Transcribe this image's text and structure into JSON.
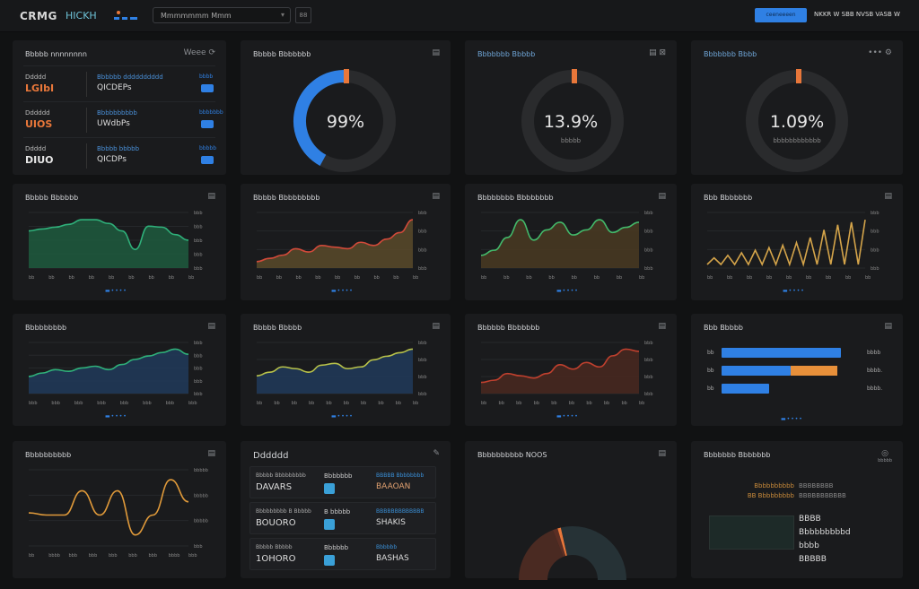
{
  "header": {
    "logo": "CRMG",
    "logo_sub": "HICKH",
    "search_value": "Mmmmmmm Mmm",
    "search_btn": "88",
    "primary_button": "ceeneeeen",
    "user_text": "NKKR W SBB NVSB VASB W"
  },
  "colors": {
    "accent": "#2f80e4",
    "orange": "#e8773a",
    "green": "#2e8a5a",
    "gold": "#d4a44a"
  },
  "kpi_list": {
    "title": "Bbbbb nnnnnnnn",
    "action": "Weee",
    "rows": [
      {
        "label": "Ddddd",
        "value": "LGIbI",
        "value_color": "#e8773a",
        "metric_label": "Bbbbbb dddddddddd",
        "metric": "QICDEPs",
        "badge": "bbbb"
      },
      {
        "label": "Dddddd",
        "value": "UIOS",
        "value_color": "#e8773a",
        "metric_label": "Bbbbbbbbbb",
        "metric": "UWdbPs",
        "badge": "bbbbbbb"
      },
      {
        "label": "Ddddd",
        "value": "DIUO",
        "value_color": "#e6e6e6",
        "metric_label": "Bbbbb bbbbb",
        "metric": "QICDPs",
        "badge": "bbbbb"
      }
    ]
  },
  "gauges": [
    {
      "title": "Bbbbb Bbbbbbb",
      "value": "99%",
      "fraction": 0.42,
      "color": "#2f80e4",
      "sub": ""
    },
    {
      "title": "Bbbbbbb Bbbbb",
      "value": "13.9%",
      "fraction": 0.0,
      "color": "#2f80e4",
      "sub": "bbbbb"
    },
    {
      "title": "Bbbbbbb Bbbb",
      "value": "1.09%",
      "fraction": 0.0,
      "color": "#2f80e4",
      "sub": "bbbbbbbbbbbb"
    }
  ],
  "charts": [
    {
      "title": "Bbbbb Bbbbbb",
      "fill": "#1f5a3e",
      "line": "#2fb07a",
      "values": [
        40,
        42,
        44,
        47,
        52,
        52,
        48,
        40,
        20,
        45,
        44,
        36,
        30
      ],
      "yticks": [
        "bbb",
        "bbb",
        "bbb",
        "bbb",
        "bbb"
      ],
      "xticks": [
        "bb",
        "bb",
        "bb",
        "bb",
        "bb",
        "bb",
        "bb",
        "bb",
        "bb"
      ]
    },
    {
      "title": "Bbbbb Bbbbbbbbb",
      "fill": "#5a4a2a",
      "line": "#d24a3a",
      "values": [
        4,
        6,
        8,
        12,
        10,
        14,
        13,
        12,
        16,
        14,
        18,
        22,
        30
      ],
      "yticks": [
        "bbb",
        "bbb",
        "bbb",
        "bbb"
      ],
      "xticks": [
        "bb",
        "bb",
        "bb",
        "bb",
        "bb",
        "bb",
        "bb",
        "bb",
        "bb"
      ]
    },
    {
      "title": "Bbbbbbbb Bbbbbbbb",
      "fill": "#4a3a22",
      "line": "#43b96a",
      "values": [
        10,
        14,
        24,
        38,
        22,
        30,
        36,
        26,
        30,
        38,
        28,
        32,
        36
      ],
      "yticks": [
        "bbb",
        "bbb",
        "bbb",
        "bbb"
      ],
      "xticks": [
        "bb",
        "bb",
        "bb",
        "bb",
        "bb",
        "bb",
        "bb",
        "bb"
      ]
    },
    {
      "title": "Bbb Bbbbbbb",
      "fill": "none",
      "line": "#d4a44a",
      "values": [
        4,
        8,
        6,
        10,
        4,
        12,
        6,
        14,
        5,
        16,
        8,
        18,
        6,
        20,
        10,
        24,
        12,
        30,
        14,
        34,
        10,
        36,
        12,
        38
      ],
      "yticks": [
        "bbb",
        "bbb",
        "bbb",
        "bbb"
      ],
      "xticks": [
        "bb",
        "bb",
        "bb",
        "bb",
        "bb",
        "bb",
        "bb",
        "bb",
        "bb"
      ],
      "bars": true
    },
    {
      "title": "Bbbbbbbbb",
      "fill": "#213a5a",
      "line": "#2fb07a",
      "values": [
        20,
        24,
        28,
        26,
        30,
        32,
        28,
        34,
        40,
        44,
        48,
        52,
        46
      ],
      "yticks": [
        "bbb",
        "bbb",
        "bbb",
        "bbb",
        "bbb"
      ],
      "xticks": [
        "bbb",
        "bbb",
        "bbb",
        "bbb",
        "bbb",
        "bbb",
        "bbb",
        "bbb"
      ]
    },
    {
      "title": "Bbbbb Bbbbb",
      "fill": "#213a5a",
      "line": "#b8c24a",
      "values": [
        20,
        24,
        30,
        28,
        24,
        32,
        34,
        28,
        30,
        38,
        42,
        46,
        50
      ],
      "yticks": [
        "bbb",
        "bbb",
        "bbb",
        "bbb"
      ],
      "xticks": [
        "bb",
        "bb",
        "bb",
        "bb",
        "bb",
        "bb",
        "bb",
        "bb",
        "bb",
        "bb"
      ]
    },
    {
      "title": "Bbbbbb Bbbbbbb",
      "fill": "#4a2820",
      "line": "#c0402e",
      "values": [
        10,
        12,
        18,
        16,
        14,
        18,
        26,
        22,
        28,
        24,
        34,
        40,
        38
      ],
      "yticks": [
        "bbb",
        "bbb",
        "bbb",
        "bbb"
      ],
      "xticks": [
        "bb",
        "bb",
        "bb",
        "bb",
        "bb",
        "bb",
        "bb",
        "bb",
        "bb",
        "bb"
      ]
    },
    {
      "title": "Bbbbbbbbbb",
      "fill": "none",
      "line": "#e09a3a",
      "values": [
        30,
        28,
        28,
        50,
        28,
        50,
        10,
        28,
        60,
        40
      ],
      "yticks": [
        "bbbbb",
        "bbbbb",
        "bbbbb",
        "bbb"
      ],
      "xticks": [
        "bb",
        "bbbb",
        "bbb",
        "bbb",
        "bbb",
        "bbb",
        "bbb",
        "bbbb",
        "bbb"
      ]
    }
  ],
  "hbars": {
    "title": "Bbb Bbbbb",
    "rows": [
      {
        "label": "bb",
        "value": "bbbb",
        "blue": 0.95,
        "orange": 0
      },
      {
        "label": "bb",
        "value": "bbbb.",
        "blue": 0.55,
        "orange": 0.37
      },
      {
        "label": "bb",
        "value": "bbbb.",
        "blue": 0.38,
        "orange": 0
      }
    ]
  },
  "table": {
    "title": "Dddddd",
    "rows": [
      {
        "c1_label": "Bbbbb Bbbbbbbbb",
        "c1": "DAVARS",
        "c2_label": "Bbbbbbb",
        "c3_label": "BBBBB Bbbbbbbb",
        "c3": "BAAOAN"
      },
      {
        "c1_label": "Bbbbbbbbb B Bbbbb",
        "c1": "BOUORO",
        "c2_label": "B bbbbb",
        "c3_label": "BBBBBBBBBBBBB",
        "c3": "SHAKIS"
      },
      {
        "c1_label": "Bbbbb Bbbbb",
        "c1": "1OHORO",
        "c2_label": "Bbbbbb",
        "c3_label": "Bbbbbb",
        "c3": "BASHAS"
      }
    ]
  },
  "pie": {
    "title": "Bbbbbbbbbb NOOS",
    "slices": [
      {
        "value": 38,
        "color": "#4a2a22"
      },
      {
        "value": 3,
        "color": "#5a2e24"
      },
      {
        "value": 2,
        "color": "#e8773a"
      },
      {
        "value": 57,
        "color": "#263236"
      }
    ]
  },
  "text_panel": {
    "title": "Bbbbbbb Bbbbbbb",
    "icon_label": "bbbbb",
    "legend": [
      {
        "key": "Bbbbbbbbbb",
        "val": "BBBBBBBB"
      },
      {
        "key": "BB Bbbbbbbbb",
        "val": "BBBBBBBBBBB"
      }
    ],
    "lines": [
      "BBBB",
      "Bbbbbbbbbd",
      "bbbb",
      "BBBBB"
    ]
  }
}
